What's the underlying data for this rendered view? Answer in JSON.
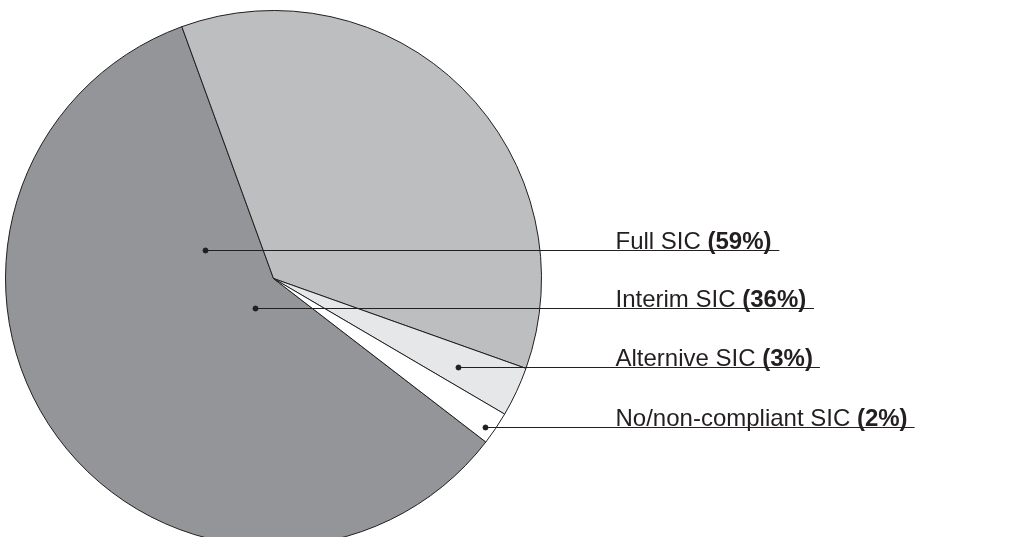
{
  "chart_data": {
    "type": "pie",
    "categories": [
      "Full SIC",
      "Interim SIC",
      "Alternive SIC",
      "No/non-compliant SIC"
    ],
    "values": [
      59,
      36,
      3,
      2
    ],
    "value_labels": [
      "(59%)",
      "(36%)",
      "(3%)",
      "(2%)"
    ],
    "colors": [
      "#939598",
      "#bcbec0",
      "#e6e7e8",
      "#ffffff"
    ],
    "legend": false
  }
}
